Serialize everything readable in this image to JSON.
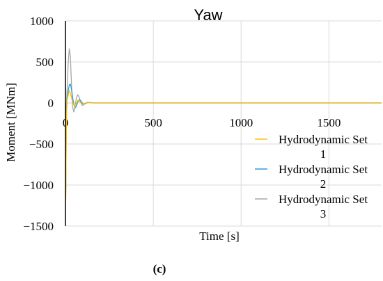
{
  "chart_data": {
    "type": "line",
    "title": "Yaw",
    "xlabel": "Time [s]",
    "ylabel": "Moment [MNm]",
    "xlim": [
      0,
      1800
    ],
    "ylim": [
      -1500,
      1000
    ],
    "xticks": [
      0,
      500,
      1000,
      1500
    ],
    "yticks": [
      1000,
      500,
      0,
      -500,
      -1000,
      -1500
    ],
    "xtick_labels": [
      "0",
      "500",
      "1000",
      "1500"
    ],
    "ytick_labels": [
      "1000",
      "500",
      "0",
      "−500",
      "−1000",
      "−1500"
    ],
    "grid": true,
    "legend_position": "right",
    "series": [
      {
        "name": "Hydrodynamic Set 1",
        "legend_lines": [
          "Hydrodynamic Set",
          "1"
        ],
        "color": "#ffc000",
        "x": [
          0,
          2,
          4,
          6,
          10,
          16,
          22,
          28,
          34,
          40,
          48,
          55,
          62,
          70,
          78,
          86,
          94,
          102,
          112,
          124,
          140,
          160,
          200,
          300,
          500,
          1000,
          1500,
          1800
        ],
        "y": [
          0,
          -1180,
          -600,
          -150,
          40,
          100,
          150,
          120,
          70,
          20,
          -30,
          -45,
          -10,
          30,
          25,
          5,
          -15,
          -12,
          -3,
          5,
          2,
          0,
          0,
          0,
          0,
          0,
          0,
          0
        ]
      },
      {
        "name": "Hydrodynamic Set 2",
        "legend_lines": [
          "Hydrodynamic Set",
          "2"
        ],
        "color": "#2e9cdb",
        "x": [
          0,
          2,
          4,
          6,
          10,
          16,
          22,
          28,
          34,
          40,
          48,
          55,
          62,
          70,
          78,
          86,
          94,
          102,
          112,
          124,
          140,
          160,
          200,
          300,
          500,
          1000,
          1500,
          1800
        ],
        "y": [
          0,
          -1100,
          -500,
          -100,
          60,
          150,
          220,
          230,
          170,
          80,
          -20,
          -60,
          -40,
          10,
          40,
          30,
          5,
          -15,
          -10,
          3,
          5,
          0,
          0,
          0,
          0,
          0,
          0,
          0
        ]
      },
      {
        "name": "Hydrodynamic Set 3",
        "legend_lines": [
          "Hydrodynamic Set",
          "3"
        ],
        "color": "#a6a6a6",
        "x": [
          0,
          2,
          4,
          6,
          10,
          16,
          22,
          28,
          34,
          40,
          48,
          55,
          62,
          70,
          78,
          86,
          94,
          102,
          112,
          124,
          140,
          160,
          200,
          300,
          500,
          1000,
          1500,
          1800
        ],
        "y": [
          0,
          -1050,
          -400,
          0,
          200,
          500,
          660,
          560,
          250,
          -40,
          -110,
          -50,
          60,
          100,
          70,
          10,
          -30,
          -25,
          -5,
          8,
          3,
          0,
          0,
          0,
          0,
          0,
          0,
          0
        ]
      }
    ]
  },
  "caption": "(c)"
}
